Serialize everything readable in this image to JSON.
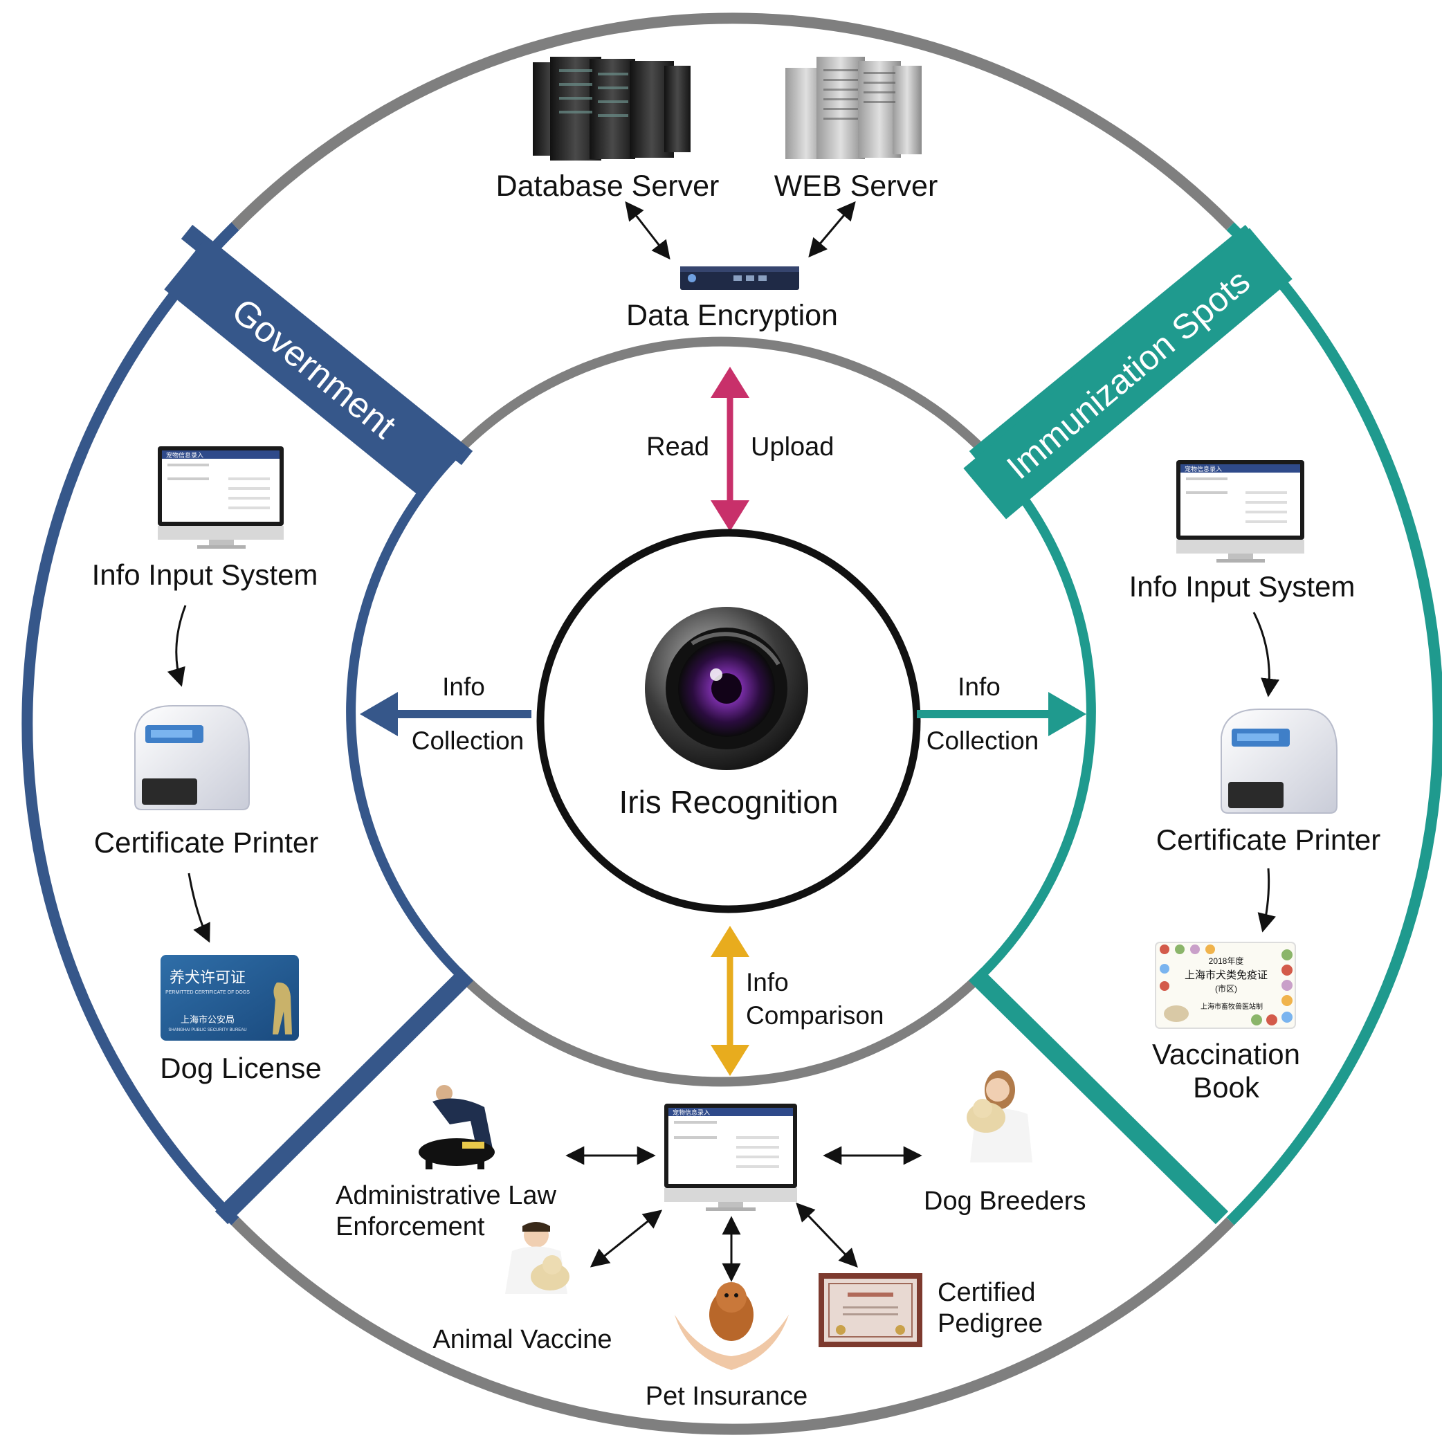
{
  "top": {
    "database_server": "Database Server",
    "web_server": "WEB Server",
    "data_encryption": "Data Encryption"
  },
  "core": {
    "read": "Read",
    "upload": "Upload",
    "center": "Iris Recognition",
    "left_info": "Info",
    "left_collection": "Collection",
    "right_info": "Info",
    "right_collection": "Collection",
    "bottom_info": "Info",
    "bottom_comparison": "Comparison"
  },
  "government": {
    "banner": "Government",
    "input_system": "Info Input System",
    "printer": "Certificate Printer",
    "license": "Dog License",
    "license_card_title": "养犬许可证",
    "license_card_subtitle": "PERMITTED CERTIFICATE OF DOGS",
    "license_card_issuer": "上海市公安局",
    "license_card_issuer_en": "SHANGHAI PUBLIC SECURITY BUREAU"
  },
  "immunization": {
    "banner": "Immunization Spots",
    "input_system": "Info Input System",
    "printer": "Certificate Printer",
    "book_line1": "Vaccination",
    "book_line2": "Book",
    "book_card_year": "2018年度",
    "book_card_title": "上海市犬类免疫证",
    "book_card_area": "(市区)",
    "book_card_issuer": "上海市畜牧兽医站制"
  },
  "screen_ui": {
    "header": "宠物信息录入"
  },
  "bottom": {
    "law_line1": "Administrative Law",
    "law_line2": "Enforcement",
    "breeders": "Dog Breeders",
    "vaccine": "Animal Vaccine",
    "insurance": "Pet Insurance",
    "pedigree_line1": "Certified",
    "pedigree_line2": "Pedigree"
  },
  "colors": {
    "government": "#36578a",
    "immunization": "#1f9a8e",
    "ring_gray": "#7f7f7f",
    "read_upload_arrow": "#c8306a",
    "comparison_arrow": "#e8ac1e"
  }
}
